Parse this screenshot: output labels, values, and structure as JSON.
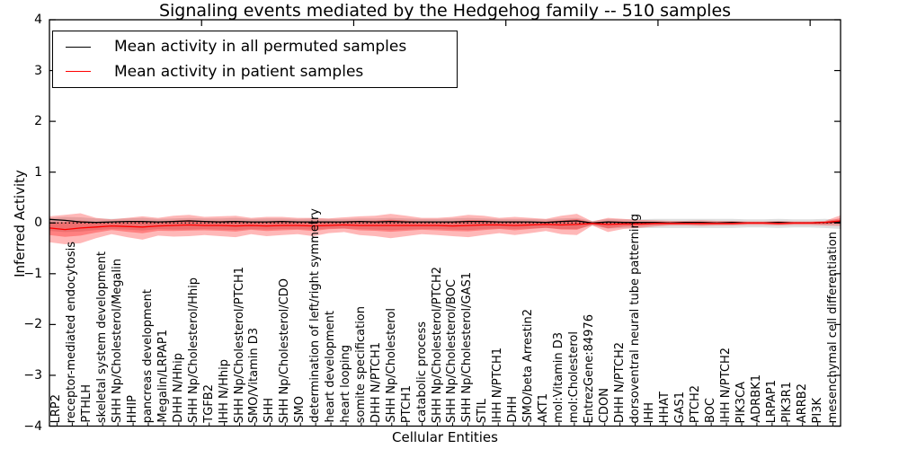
{
  "chart_data": {
    "type": "line",
    "title": "Signaling events mediated by the Hedgehog family -- 510 samples",
    "xlabel": "Cellular Entities",
    "ylabel": "Inferred Activity",
    "ylim": [
      -4,
      4
    ],
    "yticks": [
      "4",
      "3",
      "2",
      "1",
      "0",
      "−1",
      "−2",
      "−3",
      "−4"
    ],
    "grid": false,
    "legend_position": "upper left",
    "zero_baseline": {
      "value": 0,
      "style": "dotted",
      "color": "#000000"
    },
    "categories": [
      "LRP2",
      "receptor-mediated endocytosis",
      "PTHLH",
      "skeletal system development",
      "SHH Np/Cholesterol/Megalin",
      "HHIP",
      "pancreas development",
      "Megalin/LRPAP1",
      "DHH N/Hhip",
      "SHH Np/Cholesterol/Hhip",
      "TGFB2",
      "IHH N/Hhip",
      "SHH Np/Cholesterol/PTCH1",
      "SMO/Vitamin D3",
      "SHH",
      "SHH Np/Cholesterol/CDO",
      "SMO",
      "determination of left/right symmetry",
      "heart development",
      "heart looping",
      "somite specification",
      "DHH N/PTCH1",
      "SHH Np/Cholesterol",
      "PTCH1",
      "catabolic process",
      "SHH Np/Cholesterol/PTCH2",
      "SHH Np/Cholesterol/BOC",
      "SHH Np/Cholesterol/GAS1",
      "STIL",
      "IHH N/PTCH1",
      "DHH",
      "SMO/beta Arrestin2",
      "AKT1",
      "mol:Vitamin D3",
      "mol:Cholesterol",
      "EntrezGene:84976",
      "CDON",
      "DHH N/PTCH2",
      "dorsoventral neural tube patterning",
      "IHH",
      "HHAT",
      "GAS1",
      "PTCH2",
      "BOC",
      "IHH N/PTCH2",
      "PIK3CA",
      "ADRBK1",
      "LRPAP1",
      "PIK3R1",
      "ARRB2",
      "PI3K",
      "mesenchymal cell differentiation"
    ],
    "series": [
      {
        "name": "Mean activity in all permuted samples",
        "color": "#000000",
        "values": [
          0.07,
          0.05,
          0.02,
          0.01,
          0.02,
          0.03,
          0.03,
          0.02,
          0.03,
          0.04,
          0.03,
          0.02,
          0.03,
          0.02,
          0.02,
          0.03,
          0.02,
          0.02,
          0.02,
          0.02,
          0.03,
          0.02,
          0.03,
          0.02,
          0.02,
          0.02,
          0.02,
          0.03,
          0.03,
          0.02,
          0.02,
          0.02,
          0.01,
          0.03,
          0.04,
          0.0,
          0.02,
          0.01,
          0.01,
          0.01,
          0.0,
          0.01,
          0.01,
          0.0,
          0.01,
          0.0,
          0.0,
          0.01,
          0.0,
          0.0,
          0.01,
          0.02
        ]
      },
      {
        "name": "Mean activity in patient samples",
        "color": "#ff0000",
        "values": [
          -0.1,
          -0.13,
          -0.1,
          -0.08,
          -0.06,
          -0.07,
          -0.08,
          -0.06,
          -0.05,
          -0.04,
          -0.05,
          -0.05,
          -0.06,
          -0.05,
          -0.06,
          -0.05,
          -0.05,
          -0.06,
          -0.05,
          -0.04,
          -0.05,
          -0.05,
          -0.05,
          -0.05,
          -0.05,
          -0.05,
          -0.06,
          -0.05,
          -0.04,
          -0.04,
          -0.05,
          -0.04,
          -0.03,
          -0.04,
          -0.03,
          -0.01,
          -0.03,
          -0.02,
          -0.02,
          -0.01,
          -0.01,
          -0.01,
          -0.01,
          -0.01,
          -0.01,
          0.0,
          0.0,
          -0.01,
          0.0,
          0.0,
          0.01,
          0.04
        ]
      }
    ],
    "bands": [
      {
        "name": "permuted samples std band",
        "color": "rgba(0,0,0,0.13)",
        "upper": [
          0.1,
          0.12,
          0.11,
          0.09,
          0.08,
          0.09,
          0.1,
          0.08,
          0.09,
          0.1,
          0.09,
          0.09,
          0.1,
          0.08,
          0.09,
          0.09,
          0.08,
          0.09,
          0.08,
          0.08,
          0.09,
          0.09,
          0.1,
          0.09,
          0.08,
          0.08,
          0.09,
          0.1,
          0.09,
          0.08,
          0.08,
          0.08,
          0.07,
          0.09,
          0.1,
          0.04,
          0.08,
          0.07,
          0.07,
          0.08,
          0.08,
          0.08,
          0.08,
          0.08,
          0.08,
          0.07,
          0.07,
          0.08,
          0.07,
          0.07,
          0.08,
          0.06
        ],
        "lower": [
          -0.16,
          -0.18,
          -0.17,
          -0.14,
          -0.12,
          -0.13,
          -0.15,
          -0.12,
          -0.13,
          -0.13,
          -0.12,
          -0.13,
          -0.14,
          -0.12,
          -0.13,
          -0.12,
          -0.12,
          -0.13,
          -0.11,
          -0.11,
          -0.12,
          -0.13,
          -0.14,
          -0.13,
          -0.12,
          -0.12,
          -0.13,
          -0.14,
          -0.12,
          -0.11,
          -0.12,
          -0.11,
          -0.1,
          -0.12,
          -0.12,
          -0.05,
          -0.11,
          -0.1,
          -0.1,
          -0.1,
          -0.1,
          -0.1,
          -0.1,
          -0.1,
          -0.1,
          -0.09,
          -0.09,
          -0.1,
          -0.09,
          -0.09,
          -0.1,
          -0.12
        ]
      },
      {
        "name": "patient samples std band",
        "color": "rgba(255,0,0,0.28)",
        "upper": [
          0.13,
          0.16,
          0.19,
          0.1,
          0.07,
          0.1,
          0.13,
          0.1,
          0.14,
          0.16,
          0.12,
          0.13,
          0.14,
          0.1,
          0.12,
          0.12,
          0.1,
          0.1,
          0.09,
          0.11,
          0.13,
          0.14,
          0.18,
          0.14,
          0.1,
          0.1,
          0.12,
          0.16,
          0.14,
          0.1,
          0.12,
          0.1,
          0.08,
          0.14,
          0.18,
          0.03,
          0.1,
          0.08,
          0.06,
          0.05,
          0.04,
          0.04,
          0.05,
          0.04,
          0.04,
          0.03,
          0.03,
          0.04,
          0.03,
          0.03,
          0.04,
          0.15
        ],
        "lower": [
          -0.38,
          -0.42,
          -0.4,
          -0.3,
          -0.22,
          -0.28,
          -0.33,
          -0.25,
          -0.27,
          -0.26,
          -0.24,
          -0.26,
          -0.28,
          -0.22,
          -0.26,
          -0.24,
          -0.22,
          -0.26,
          -0.2,
          -0.18,
          -0.24,
          -0.26,
          -0.3,
          -0.26,
          -0.22,
          -0.24,
          -0.26,
          -0.28,
          -0.24,
          -0.2,
          -0.24,
          -0.2,
          -0.16,
          -0.22,
          -0.24,
          -0.05,
          -0.18,
          -0.12,
          -0.1,
          -0.07,
          -0.05,
          -0.05,
          -0.06,
          -0.05,
          -0.05,
          -0.04,
          -0.04,
          -0.05,
          -0.04,
          -0.04,
          -0.05,
          -0.06
        ]
      }
    ]
  }
}
